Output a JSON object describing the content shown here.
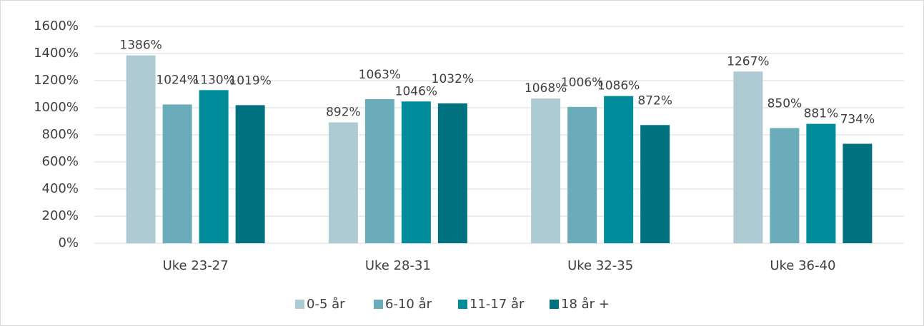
{
  "chart_data": {
    "type": "bar",
    "categories": [
      "Uke 23-27",
      "Uke 28-31",
      "Uke 32-35",
      "Uke 36-40"
    ],
    "series": [
      {
        "name": "0-5 år",
        "color": "#aecbd3",
        "values": [
          1386,
          892,
          1068,
          1267
        ],
        "value_labels": [
          "1386%",
          "892%",
          "1068%",
          "1267%"
        ]
      },
      {
        "name": "6-10 år",
        "color": "#6aacba",
        "values": [
          1024,
          1063,
          1006,
          850
        ],
        "value_labels": [
          "1024%",
          "1063%",
          "1006%",
          "850%"
        ]
      },
      {
        "name": "11-17 år",
        "color": "#008c9a",
        "values": [
          1130,
          1046,
          1086,
          881
        ],
        "value_labels": [
          "1130%",
          "1046%",
          "1086%",
          "881%"
        ]
      },
      {
        "name": "18 år +",
        "color": "#00717f",
        "values": [
          1019,
          1032,
          872,
          734
        ],
        "value_labels": [
          "1019%",
          "1032%",
          "872%",
          "734%"
        ]
      }
    ],
    "ylim": [
      0,
      1600
    ],
    "yticks": [
      {
        "value": 0,
        "label": "0%"
      },
      {
        "value": 200,
        "label": "200%"
      },
      {
        "value": 400,
        "label": "400%"
      },
      {
        "value": 600,
        "label": "600%"
      },
      {
        "value": 800,
        "label": "800%"
      },
      {
        "value": 1000,
        "label": "1000%"
      },
      {
        "value": 1200,
        "label": "1200%"
      },
      {
        "value": 1400,
        "label": "1400%"
      },
      {
        "value": 1600,
        "label": "1600%"
      }
    ],
    "grid": true,
    "legend": "bottom"
  }
}
